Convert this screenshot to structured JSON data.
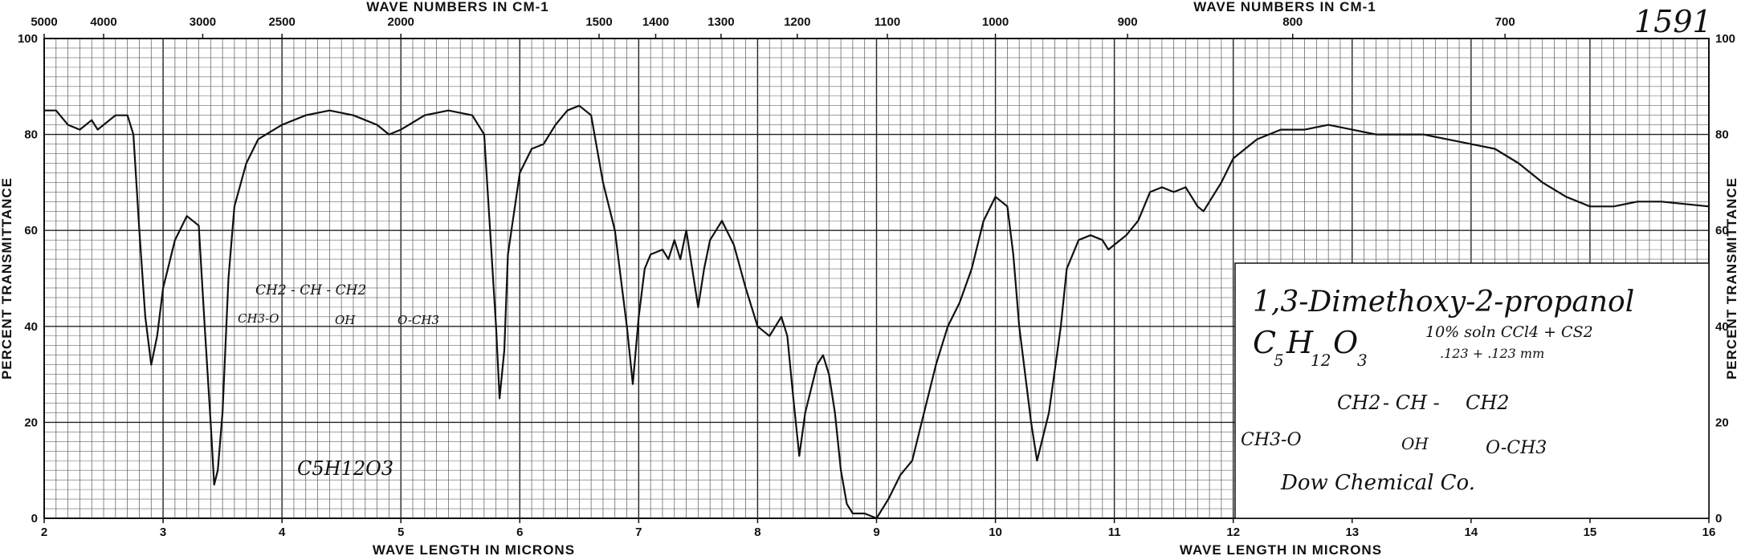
{
  "sample_number": "1591",
  "chart_data": {
    "type": "line",
    "title": "1,3-Dimethoxy-2-propanol",
    "top_axis_label": "WAVE NUMBERS IN CM-1",
    "xlabel": "WAVE LENGTH IN MICRONS",
    "ylabel": "PERCENT TRANSMITTANCE",
    "xlim": [
      2,
      16
    ],
    "ylim": [
      0,
      100
    ],
    "x_ticks": [
      "2",
      "3",
      "4",
      "5",
      "6",
      "7",
      "8",
      "9",
      "10",
      "11",
      "12",
      "13",
      "14",
      "15",
      "16"
    ],
    "y_ticks": [
      "0",
      "20",
      "40",
      "60",
      "80",
      "100"
    ],
    "top_ticks": [
      {
        "label": "5000",
        "wavenumber": 5000
      },
      {
        "label": "4000",
        "wavenumber": 4000
      },
      {
        "label": "3000",
        "wavenumber": 3000
      },
      {
        "label": "2500",
        "wavenumber": 2500
      },
      {
        "label": "2000",
        "wavenumber": 2000
      },
      {
        "label": "1500",
        "wavenumber": 1500
      },
      {
        "label": "1400",
        "wavenumber": 1400
      },
      {
        "label": "1300",
        "wavenumber": 1300
      },
      {
        "label": "1200",
        "wavenumber": 1200
      },
      {
        "label": "1100",
        "wavenumber": 1100
      },
      {
        "label": "1000",
        "wavenumber": 1000
      },
      {
        "label": "900",
        "wavenumber": 900
      },
      {
        "label": "800",
        "wavenumber": 800
      },
      {
        "label": "700",
        "wavenumber": 700
      }
    ],
    "grid": true,
    "series": [
      {
        "points": [
          [
            2.0,
            85
          ],
          [
            2.1,
            85
          ],
          [
            2.2,
            82
          ],
          [
            2.3,
            81
          ],
          [
            2.4,
            83
          ],
          [
            2.45,
            81
          ],
          [
            2.5,
            82
          ],
          [
            2.6,
            84
          ],
          [
            2.7,
            84
          ],
          [
            2.75,
            80
          ],
          [
            2.8,
            60
          ],
          [
            2.85,
            42
          ],
          [
            2.9,
            32
          ],
          [
            2.95,
            38
          ],
          [
            3.0,
            48
          ],
          [
            3.1,
            58
          ],
          [
            3.2,
            63
          ],
          [
            3.3,
            61
          ],
          [
            3.35,
            40
          ],
          [
            3.4,
            20
          ],
          [
            3.43,
            7
          ],
          [
            3.46,
            10
          ],
          [
            3.5,
            22
          ],
          [
            3.55,
            50
          ],
          [
            3.6,
            65
          ],
          [
            3.7,
            74
          ],
          [
            3.8,
            79
          ],
          [
            4.0,
            82
          ],
          [
            4.2,
            84
          ],
          [
            4.4,
            85
          ],
          [
            4.6,
            84
          ],
          [
            4.8,
            82
          ],
          [
            4.9,
            80
          ],
          [
            5.0,
            81
          ],
          [
            5.2,
            84
          ],
          [
            5.4,
            85
          ],
          [
            5.6,
            84
          ],
          [
            5.7,
            80
          ],
          [
            5.75,
            60
          ],
          [
            5.8,
            40
          ],
          [
            5.83,
            25
          ],
          [
            5.87,
            35
          ],
          [
            5.9,
            55
          ],
          [
            6.0,
            72
          ],
          [
            6.1,
            77
          ],
          [
            6.2,
            78
          ],
          [
            6.3,
            82
          ],
          [
            6.4,
            85
          ],
          [
            6.5,
            86
          ],
          [
            6.6,
            84
          ],
          [
            6.7,
            70
          ],
          [
            6.8,
            60
          ],
          [
            6.85,
            50
          ],
          [
            6.9,
            40
          ],
          [
            6.95,
            28
          ],
          [
            7.0,
            42
          ],
          [
            7.05,
            52
          ],
          [
            7.1,
            55
          ],
          [
            7.2,
            56
          ],
          [
            7.25,
            54
          ],
          [
            7.3,
            58
          ],
          [
            7.35,
            54
          ],
          [
            7.4,
            60
          ],
          [
            7.45,
            52
          ],
          [
            7.5,
            44
          ],
          [
            7.55,
            52
          ],
          [
            7.6,
            58
          ],
          [
            7.7,
            62
          ],
          [
            7.8,
            57
          ],
          [
            7.9,
            48
          ],
          [
            8.0,
            40
          ],
          [
            8.1,
            38
          ],
          [
            8.15,
            40
          ],
          [
            8.2,
            42
          ],
          [
            8.25,
            38
          ],
          [
            8.3,
            25
          ],
          [
            8.35,
            13
          ],
          [
            8.4,
            22
          ],
          [
            8.5,
            32
          ],
          [
            8.55,
            34
          ],
          [
            8.6,
            30
          ],
          [
            8.65,
            22
          ],
          [
            8.7,
            10
          ],
          [
            8.75,
            3
          ],
          [
            8.8,
            1
          ],
          [
            8.9,
            1
          ],
          [
            9.0,
            0
          ],
          [
            9.1,
            4
          ],
          [
            9.2,
            9
          ],
          [
            9.3,
            12
          ],
          [
            9.4,
            22
          ],
          [
            9.5,
            32
          ],
          [
            9.6,
            40
          ],
          [
            9.7,
            45
          ],
          [
            9.8,
            52
          ],
          [
            9.9,
            62
          ],
          [
            10.0,
            67
          ],
          [
            10.1,
            65
          ],
          [
            10.15,
            55
          ],
          [
            10.2,
            40
          ],
          [
            10.3,
            20
          ],
          [
            10.35,
            12
          ],
          [
            10.45,
            22
          ],
          [
            10.55,
            40
          ],
          [
            10.6,
            52
          ],
          [
            10.7,
            58
          ],
          [
            10.8,
            59
          ],
          [
            10.9,
            58
          ],
          [
            10.95,
            56
          ],
          [
            11.0,
            57
          ],
          [
            11.1,
            59
          ],
          [
            11.2,
            62
          ],
          [
            11.3,
            68
          ],
          [
            11.4,
            69
          ],
          [
            11.5,
            68
          ],
          [
            11.6,
            69
          ],
          [
            11.7,
            65
          ],
          [
            11.75,
            64
          ],
          [
            11.8,
            66
          ],
          [
            11.9,
            70
          ],
          [
            12.0,
            75
          ],
          [
            12.2,
            79
          ],
          [
            12.4,
            81
          ],
          [
            12.6,
            81
          ],
          [
            12.8,
            82
          ],
          [
            13.0,
            81
          ],
          [
            13.2,
            80
          ],
          [
            13.6,
            80
          ],
          [
            14.0,
            78
          ],
          [
            14.2,
            77
          ],
          [
            14.4,
            74
          ],
          [
            14.6,
            70
          ],
          [
            14.8,
            67
          ],
          [
            15.0,
            65
          ],
          [
            15.2,
            65
          ],
          [
            15.4,
            66
          ],
          [
            15.6,
            66
          ],
          [
            16.0,
            65
          ]
        ]
      }
    ]
  },
  "annotations": {
    "compound_name": "1,3-Dimethoxy-2-propanol",
    "formula_c": "C",
    "formula_c_sub": "5",
    "formula_h": "H",
    "formula_h_sub": "12",
    "formula_o": "O",
    "formula_o_sub": "3",
    "conditions_line1": "10% soln CCl4 + CS2",
    "conditions_line2": ".123 + .123 mm",
    "struct_ch2_left": "CH2",
    "struct_ch": "- CH -",
    "struct_ch2_right": "CH2",
    "struct_ch3o": "CH3-O",
    "struct_oh": "OH",
    "struct_och3": "O-CH3",
    "source": "Dow Chemical Co.",
    "sketch_top": "CH2 - CH - CH2",
    "sketch_left": "CH3-O",
    "sketch_mid": "OH",
    "sketch_right": "O-CH3",
    "sketch_formula": "C5H12O3"
  }
}
